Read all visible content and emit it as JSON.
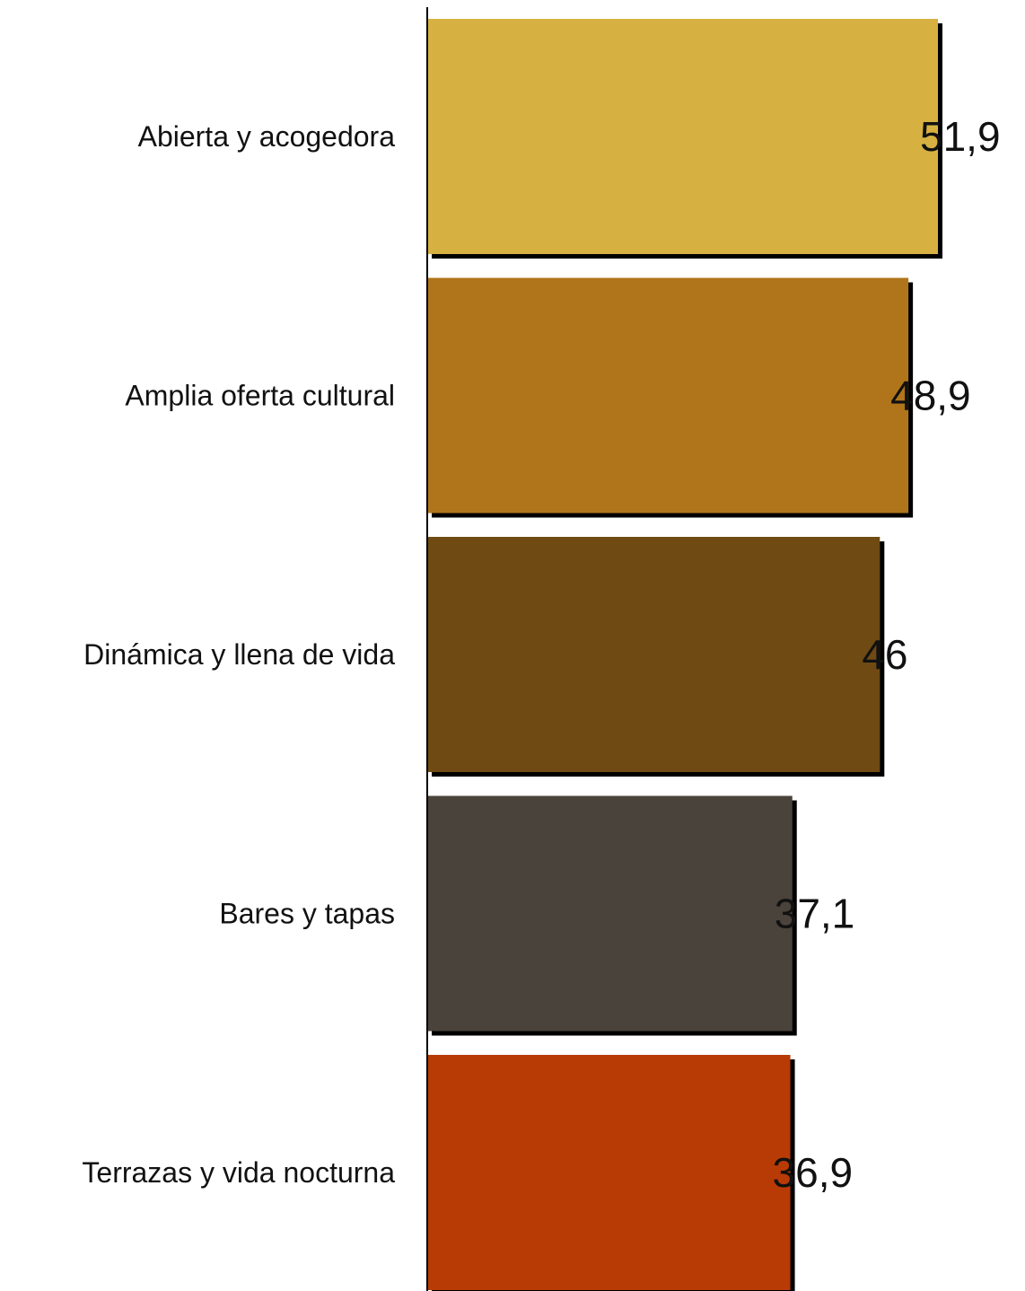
{
  "chart_data": {
    "type": "bar",
    "orientation": "horizontal",
    "categories": [
      "Abierta y acogedora",
      "Amplia oferta cultural",
      "Dinámica y llena de vida",
      "Bares y tapas",
      "Terrazas y vida nocturna"
    ],
    "values": [
      51.9,
      48.9,
      46,
      37.1,
      36.9
    ],
    "value_labels": [
      "51,9",
      "48,9",
      "46",
      "37,1",
      "36,9"
    ],
    "colors": [
      "#d6b142",
      "#b0751b",
      "#6f4b13",
      "#4a433b",
      "#b83b06"
    ],
    "shadow_color": "#000000",
    "title": "",
    "xlabel": "",
    "ylabel": "",
    "xlim": [
      0,
      55
    ],
    "grid": false,
    "legend": "none"
  }
}
